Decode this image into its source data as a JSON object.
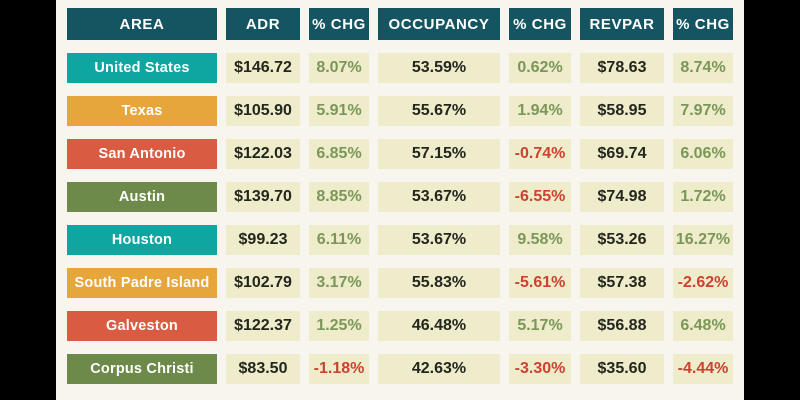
{
  "colors": {
    "frame_bg": "#000000",
    "page_bg": "#f7f5ee",
    "header_bg": "#155561",
    "row_teal": "#0fa5a1",
    "row_orange": "#e7a63b",
    "row_red": "#d95b41",
    "row_green": "#6d8a4a",
    "cell_bg": "#eeecca",
    "value_text": "#23261d",
    "positive_text": "#7a9758",
    "negative_text": "#cd4130"
  },
  "chart_data": {
    "type": "table",
    "headers": [
      "AREA",
      "ADR",
      "% CHG",
      "OCCUPANCY",
      "% CHG",
      "REVPAR",
      "% CHG"
    ],
    "rows": [
      {
        "area": "United States",
        "color": "teal",
        "adr": "$146.72",
        "adr_chg": "8.07%",
        "occupancy": "53.59%",
        "occupancy_chg": "0.62%",
        "revpar": "$78.63",
        "revpar_chg": "8.74%"
      },
      {
        "area": "Texas",
        "color": "orange",
        "adr": "$105.90",
        "adr_chg": "5.91%",
        "occupancy": "55.67%",
        "occupancy_chg": "1.94%",
        "revpar": "$58.95",
        "revpar_chg": "7.97%"
      },
      {
        "area": "San Antonio",
        "color": "red",
        "adr": "$122.03",
        "adr_chg": "6.85%",
        "occupancy": "57.15%",
        "occupancy_chg": "-0.74%",
        "revpar": "$69.74",
        "revpar_chg": "6.06%"
      },
      {
        "area": "Austin",
        "color": "green",
        "adr": "$139.70",
        "adr_chg": "8.85%",
        "occupancy": "53.67%",
        "occupancy_chg": "-6.55%",
        "revpar": "$74.98",
        "revpar_chg": "1.72%"
      },
      {
        "area": "Houston",
        "color": "teal",
        "adr": "$99.23",
        "adr_chg": "6.11%",
        "occupancy": "53.67%",
        "occupancy_chg": "9.58%",
        "revpar": "$53.26",
        "revpar_chg": "16.27%"
      },
      {
        "area": "South Padre Island",
        "color": "orange",
        "adr": "$102.79",
        "adr_chg": "3.17%",
        "occupancy": "55.83%",
        "occupancy_chg": "-5.61%",
        "revpar": "$57.38",
        "revpar_chg": "-2.62%"
      },
      {
        "area": "Galveston",
        "color": "red",
        "adr": "$122.37",
        "adr_chg": "1.25%",
        "occupancy": "46.48%",
        "occupancy_chg": "5.17%",
        "revpar": "$56.88",
        "revpar_chg": "6.48%"
      },
      {
        "area": "Corpus Christi",
        "color": "green",
        "adr": "$83.50",
        "adr_chg": "-1.18%",
        "occupancy": "42.63%",
        "occupancy_chg": "-3.30%",
        "revpar": "$35.60",
        "revpar_chg": "-4.44%"
      }
    ]
  }
}
